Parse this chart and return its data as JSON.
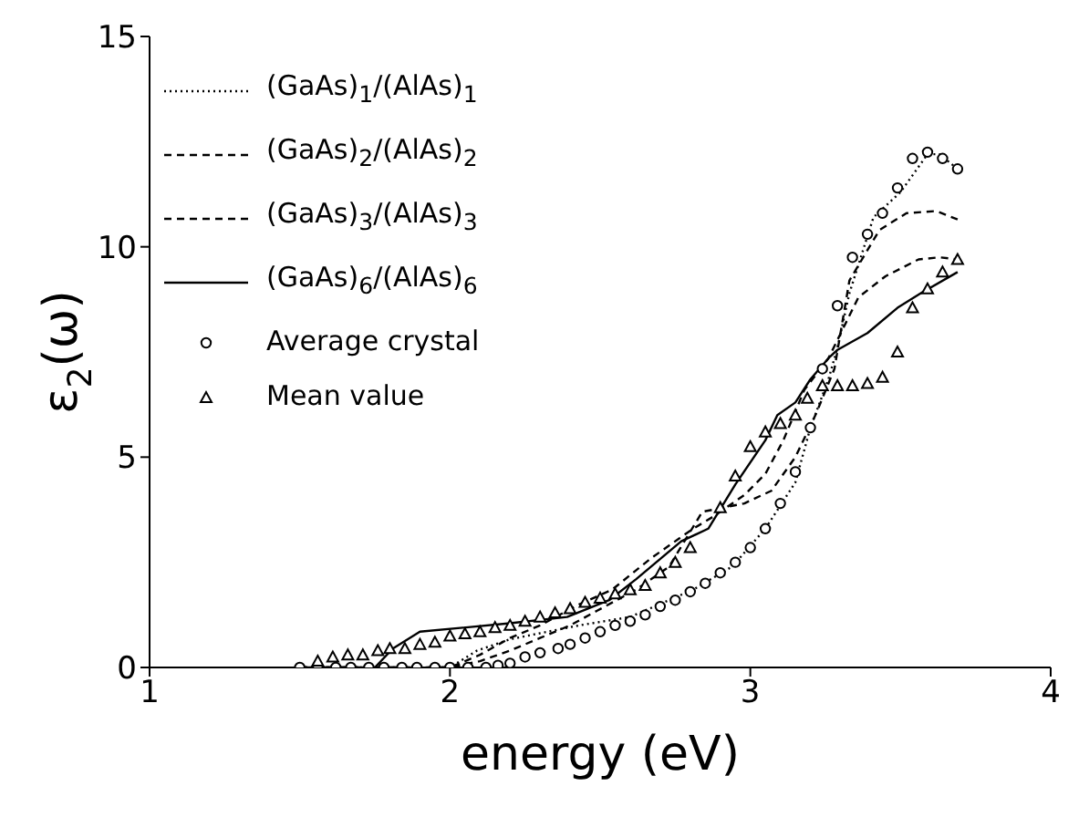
{
  "chart_data": {
    "type": "line",
    "xlabel": "energy (eV)",
    "ylabel": "ε$_{2}$(ω)",
    "xlim": [
      1,
      4
    ],
    "xticks": [
      1,
      2,
      3,
      4
    ],
    "ylim": [
      0,
      15
    ],
    "yticks": [
      0,
      5,
      10,
      15
    ],
    "grid": false,
    "legend": "top left",
    "series": [
      {
        "name": "(GaAs)$_{1}$/(AlAs)$_{1}$",
        "color": "#000000",
        "line_style": "dotted",
        "x": [
          1.5,
          2.0,
          2.09,
          2.2,
          2.43,
          2.6,
          2.81,
          2.94,
          3.05,
          3.15,
          3.2,
          3.26,
          3.29,
          3.33,
          3.41,
          3.5,
          3.59,
          3.63,
          3.69
        ],
        "values": [
          0,
          0,
          0.4,
          0.67,
          1.0,
          1.2,
          1.85,
          2.4,
          3.3,
          4.4,
          5.7,
          6.85,
          7.6,
          8.9,
          10.7,
          11.3,
          12.2,
          12.2,
          11.85
        ]
      },
      {
        "name": "(GaAs)$_{2}$/(AlAs)$_{2}$",
        "color": "#000000",
        "line_style": "dashed",
        "x": [
          1.5,
          2.0,
          2.1,
          2.2,
          2.3,
          2.4,
          2.49,
          2.62,
          2.73,
          2.84,
          2.98,
          3.07,
          3.15,
          3.22,
          3.28,
          3.33,
          3.43,
          3.52,
          3.62,
          3.69
        ],
        "values": [
          0,
          0,
          0.15,
          0.4,
          0.7,
          1.0,
          1.35,
          1.85,
          2.4,
          3.7,
          3.9,
          4.2,
          5.0,
          6.05,
          7.1,
          9.2,
          10.4,
          10.8,
          10.85,
          10.65
        ]
      },
      {
        "name": "(GaAs)$_{3}$/(AlAs)$_{3}$",
        "color": "#000000",
        "line_style": "dashed",
        "x": [
          1.5,
          2.0,
          2.1,
          2.2,
          2.3,
          2.43,
          2.54,
          2.67,
          2.81,
          2.88,
          2.98,
          3.05,
          3.11,
          3.18,
          3.26,
          3.36,
          3.45,
          3.56,
          3.63,
          3.69
        ],
        "values": [
          0,
          0,
          0.3,
          0.7,
          1.0,
          1.5,
          1.85,
          2.6,
          3.3,
          3.6,
          4.1,
          4.6,
          5.4,
          6.6,
          7.35,
          8.8,
          9.3,
          9.7,
          9.75,
          9.7
        ]
      },
      {
        "name": "(GaAs)$_{6}$/(AlAs)$_{6}$",
        "color": "#000000",
        "line_style": "solid",
        "x": [
          1.5,
          1.75,
          1.81,
          1.9,
          2.2,
          2.39,
          2.53,
          2.62,
          2.77,
          2.86,
          2.95,
          3.05,
          3.09,
          3.15,
          3.2,
          3.26,
          3.29,
          3.39,
          3.49,
          3.58,
          3.69
        ],
        "values": [
          0,
          0,
          0.45,
          0.85,
          1.05,
          1.2,
          1.6,
          2.1,
          3.0,
          3.3,
          4.35,
          5.4,
          6.0,
          6.3,
          6.85,
          7.35,
          7.55,
          7.95,
          8.55,
          8.95,
          9.4
        ]
      },
      {
        "name": "Average crystal",
        "type": "scatter",
        "marker": "circle",
        "color": "#000000",
        "x": [
          1.5,
          1.56,
          1.62,
          1.67,
          1.73,
          1.78,
          1.84,
          1.89,
          1.95,
          2.0,
          2.06,
          2.12,
          2.16,
          2.2,
          2.25,
          2.3,
          2.36,
          2.4,
          2.45,
          2.5,
          2.55,
          2.6,
          2.65,
          2.7,
          2.75,
          2.8,
          2.85,
          2.9,
          2.95,
          3.0,
          3.05,
          3.1,
          3.15,
          3.2,
          3.24,
          3.29,
          3.34,
          3.39,
          3.44,
          3.49,
          3.54,
          3.59,
          3.64,
          3.69
        ],
        "values": [
          0,
          0,
          0,
          0,
          0,
          0,
          0,
          0,
          0,
          0,
          0,
          0,
          0.05,
          0.1,
          0.25,
          0.35,
          0.45,
          0.55,
          0.7,
          0.85,
          1.0,
          1.1,
          1.25,
          1.45,
          1.6,
          1.8,
          2.0,
          2.25,
          2.5,
          2.85,
          3.3,
          3.9,
          4.65,
          5.7,
          7.1,
          8.6,
          9.75,
          10.3,
          10.8,
          11.4,
          12.1,
          12.25,
          12.1,
          11.85
        ]
      },
      {
        "name": "Mean value",
        "type": "scatter",
        "marker": "triangle",
        "color": "#000000",
        "x": [
          1.56,
          1.61,
          1.66,
          1.71,
          1.76,
          1.8,
          1.85,
          1.9,
          1.95,
          2.0,
          2.05,
          2.1,
          2.15,
          2.2,
          2.25,
          2.3,
          2.35,
          2.4,
          2.45,
          2.5,
          2.55,
          2.6,
          2.65,
          2.7,
          2.75,
          2.8,
          2.9,
          2.95,
          3.0,
          3.05,
          3.1,
          3.15,
          3.19,
          3.24,
          3.29,
          3.34,
          3.39,
          3.44,
          3.49,
          3.54,
          3.59,
          3.64,
          3.69
        ],
        "values": [
          0.15,
          0.25,
          0.3,
          0.3,
          0.4,
          0.45,
          0.45,
          0.55,
          0.6,
          0.75,
          0.8,
          0.85,
          0.95,
          1.0,
          1.1,
          1.2,
          1.3,
          1.4,
          1.55,
          1.65,
          1.75,
          1.85,
          1.95,
          2.25,
          2.5,
          2.85,
          3.8,
          4.55,
          5.25,
          5.6,
          5.8,
          6.0,
          6.4,
          6.7,
          6.7,
          6.7,
          6.75,
          6.9,
          7.5,
          8.55,
          9.0,
          9.4,
          9.7
        ]
      }
    ]
  }
}
